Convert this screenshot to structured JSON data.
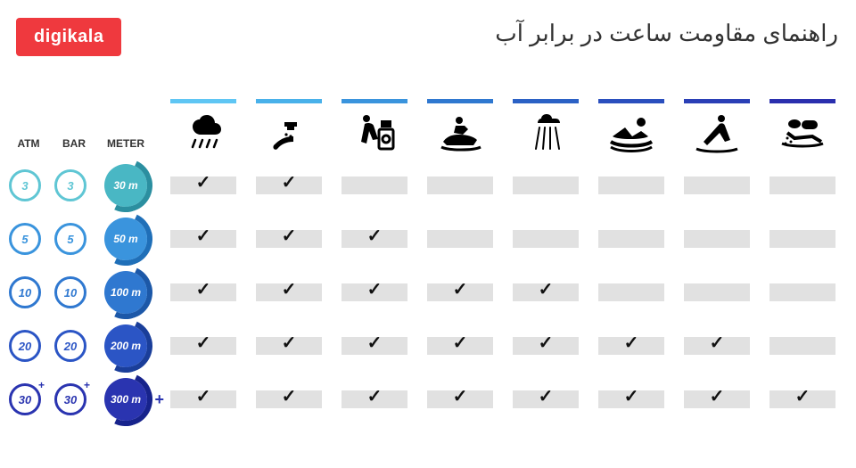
{
  "logo_text": "digikala",
  "logo_bg": "#ef393e",
  "title": "راهنمای مقاومت ساعت در برابر آب",
  "legend_headers": {
    "atm": "ATM",
    "bar": "BAR",
    "meter": "METER"
  },
  "cell_bg": "#e1e1e1",
  "check_color": "#111111",
  "activities": [
    {
      "id": "rain",
      "bar_color": "#5fc6f4",
      "icon": "rain"
    },
    {
      "id": "wash",
      "bar_color": "#49b1ea",
      "icon": "wash"
    },
    {
      "id": "cleaning",
      "bar_color": "#3a94dd",
      "icon": "cleaning"
    },
    {
      "id": "jetski",
      "bar_color": "#2f78d0",
      "icon": "jetski"
    },
    {
      "id": "shower",
      "bar_color": "#2b61c5",
      "icon": "shower"
    },
    {
      "id": "swim",
      "bar_color": "#2a4fbe",
      "icon": "swim"
    },
    {
      "id": "snorkel",
      "bar_color": "#2a3fb6",
      "icon": "snorkel"
    },
    {
      "id": "scuba",
      "bar_color": "#2a2fae",
      "icon": "scuba"
    }
  ],
  "rows": [
    {
      "atm": "3",
      "bar": "3",
      "meter": "30 m",
      "atm_color": "#5fc6d4",
      "bar_color": "#5fc6d4",
      "meter_fill": "#49b7c4",
      "arc_color": "#2b8fa0",
      "checks": [
        true,
        true,
        false,
        false,
        false,
        false,
        false,
        false
      ],
      "plus": false
    },
    {
      "atm": "5",
      "bar": "5",
      "meter": "50 m",
      "atm_color": "#3a94dd",
      "bar_color": "#3a94dd",
      "meter_fill": "#3a94dd",
      "arc_color": "#1f6fb8",
      "checks": [
        true,
        true,
        true,
        false,
        false,
        false,
        false,
        false
      ],
      "plus": false
    },
    {
      "atm": "10",
      "bar": "10",
      "meter": "100 m",
      "atm_color": "#2f78d0",
      "bar_color": "#2f78d0",
      "meter_fill": "#2f78d0",
      "arc_color": "#1c58a8",
      "checks": [
        true,
        true,
        true,
        true,
        true,
        false,
        false,
        false
      ],
      "plus": false
    },
    {
      "atm": "20",
      "bar": "20",
      "meter": "200 m",
      "atm_color": "#2b55c5",
      "bar_color": "#2b55c5",
      "meter_fill": "#2b55c5",
      "arc_color": "#1a3e9a",
      "checks": [
        true,
        true,
        true,
        true,
        true,
        true,
        true,
        false
      ],
      "plus": false
    },
    {
      "atm": "30",
      "bar": "30",
      "meter": "300 m",
      "atm_color": "#2a34b0",
      "bar_color": "#2a34b0",
      "meter_fill": "#2a34b0",
      "arc_color": "#17238c",
      "checks": [
        true,
        true,
        true,
        true,
        true,
        true,
        true,
        true
      ],
      "plus": true
    }
  ],
  "font_sizes": {
    "title": 26,
    "logo": 20,
    "legend_header": 12,
    "circle_text": 13,
    "meter_text": 12
  }
}
